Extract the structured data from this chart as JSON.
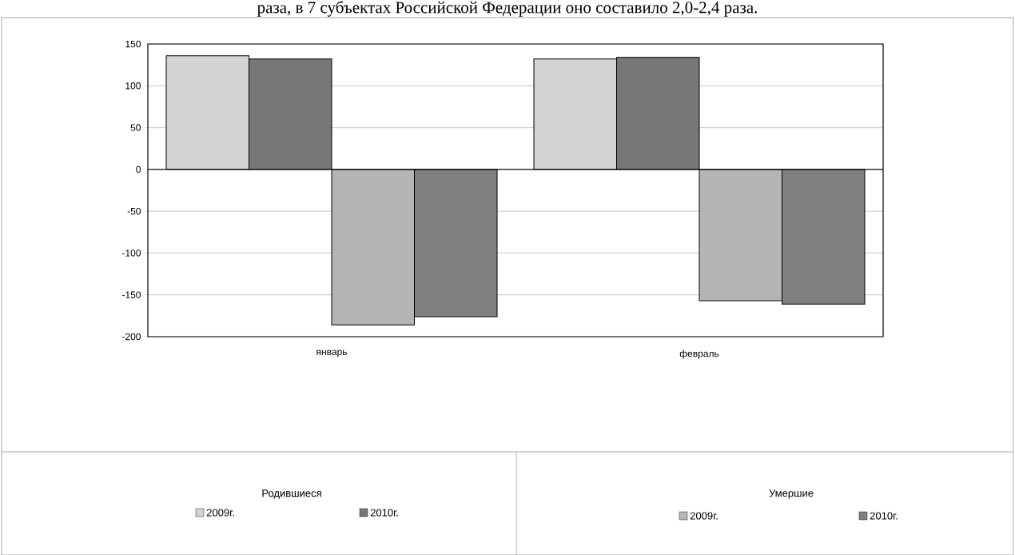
{
  "chart_data": {
    "type": "bar",
    "categories": [
      "январь",
      "февраль"
    ],
    "series": [
      {
        "name": "2009г.",
        "color": "#d3d3d3",
        "values": [
          136,
          132
        ]
      },
      {
        "name": "2010г.",
        "color": "#777777",
        "values": [
          132,
          134
        ]
      },
      {
        "name": "2009г.",
        "color": "#b5b5b5",
        "values": [
          -186,
          -157
        ]
      },
      {
        "name": "2010г.",
        "color": "#808080",
        "values": [
          -176,
          -161
        ]
      }
    ],
    "ylim": [
      -200,
      150
    ],
    "yticks": [
      -200,
      -150,
      -100,
      -50,
      0,
      50,
      100,
      150
    ],
    "grid": "y",
    "legend": "bottom",
    "annotations": [
      "раза, в 7 субъектах Российской Федерации оно составило 2,0-2,4 раза.",
      "Родившиеся",
      "Умершие"
    ]
  }
}
